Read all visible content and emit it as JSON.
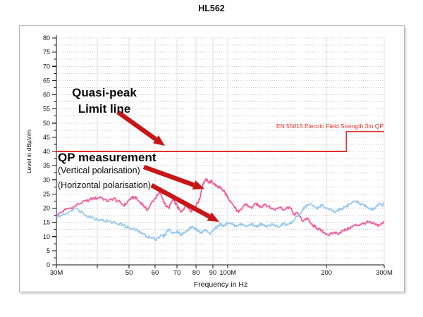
{
  "title": "HL562",
  "chart_data": {
    "type": "line",
    "title": "HL562",
    "xlabel": "Frequency in Hz",
    "ylabel": "Level in dBµV/m",
    "x_scale": "log",
    "x_range_mhz": [
      30,
      300
    ],
    "ylim": [
      0,
      80
    ],
    "y_major_step": 5,
    "y_minor_step": 2.5,
    "grid": true,
    "x_ticks": [
      {
        "f": 30,
        "label": "30M"
      },
      {
        "f": 40,
        "label": ""
      },
      {
        "f": 50,
        "label": "50"
      },
      {
        "f": 60,
        "label": "60"
      },
      {
        "f": 70,
        "label": "70"
      },
      {
        "f": 80,
        "label": "80"
      },
      {
        "f": 90,
        "label": "90"
      },
      {
        "f": 100,
        "label": "100M"
      },
      {
        "f": 200,
        "label": "200"
      },
      {
        "f": 300,
        "label": "300M"
      }
    ],
    "y_ticks": [
      0,
      5,
      10,
      15,
      20,
      25,
      30,
      35,
      40,
      45,
      50,
      55,
      60,
      65,
      70,
      75,
      80
    ],
    "limit_line": {
      "label": "EN 55015 Electric Field Strength 3m QP",
      "color": "#e62e2a",
      "points_mhz_db": [
        [
          30,
          40
        ],
        [
          230,
          40
        ],
        [
          230,
          47
        ],
        [
          300,
          47
        ]
      ]
    },
    "series": [
      {
        "name": "QP measurement (Vertical polarisation)",
        "color": "#ef5390",
        "points": [
          [
            30,
            17.5
          ],
          [
            31,
            18.5
          ],
          [
            32,
            19.5
          ],
          [
            33,
            20
          ],
          [
            34,
            20.5
          ],
          [
            35,
            21.5
          ],
          [
            36,
            22
          ],
          [
            37,
            22.5
          ],
          [
            38,
            23
          ],
          [
            39,
            23.5
          ],
          [
            40,
            23.5
          ],
          [
            41,
            24
          ],
          [
            42,
            23
          ],
          [
            43,
            22.5
          ],
          [
            44,
            23
          ],
          [
            45,
            23.5
          ],
          [
            46,
            22.5
          ],
          [
            47,
            22
          ],
          [
            48,
            21
          ],
          [
            49,
            21.5
          ],
          [
            50,
            23
          ],
          [
            51,
            23.5
          ],
          [
            52,
            24
          ],
          [
            53,
            23
          ],
          [
            54,
            22
          ],
          [
            55,
            21.5
          ],
          [
            56,
            20
          ],
          [
            57,
            19.5
          ],
          [
            58,
            21
          ],
          [
            59,
            22.5
          ],
          [
            60,
            23.5
          ],
          [
            61,
            24.5
          ],
          [
            62,
            25.5
          ],
          [
            63,
            24
          ],
          [
            64,
            22
          ],
          [
            65,
            20.5
          ],
          [
            66,
            20
          ],
          [
            67,
            21.5
          ],
          [
            68,
            23
          ],
          [
            69,
            22
          ],
          [
            70,
            21
          ],
          [
            71,
            19.5
          ],
          [
            72,
            18.5
          ],
          [
            73,
            19.5
          ],
          [
            74,
            20.5
          ],
          [
            75,
            21
          ],
          [
            76,
            20
          ],
          [
            77,
            19
          ],
          [
            78,
            19.5
          ],
          [
            79,
            20.5
          ],
          [
            80,
            21
          ],
          [
            81,
            22
          ],
          [
            82,
            23
          ],
          [
            83,
            26
          ],
          [
            84,
            28.5
          ],
          [
            85,
            29.5
          ],
          [
            86,
            30
          ],
          [
            87,
            29.5
          ],
          [
            88,
            29
          ],
          [
            89,
            29.5
          ],
          [
            90,
            29
          ],
          [
            91,
            28.5
          ],
          [
            92,
            28
          ],
          [
            93,
            27.5
          ],
          [
            94,
            27.5
          ],
          [
            95,
            27
          ],
          [
            96,
            26.5
          ],
          [
            97,
            26
          ],
          [
            98,
            25.5
          ],
          [
            99,
            24.5
          ],
          [
            100,
            24
          ],
          [
            102,
            22.5
          ],
          [
            104,
            21
          ],
          [
            106,
            19.5
          ],
          [
            108,
            18.5
          ],
          [
            110,
            19.5
          ],
          [
            112,
            21
          ],
          [
            114,
            21.5
          ],
          [
            116,
            20.5
          ],
          [
            118,
            20
          ],
          [
            120,
            21
          ],
          [
            122,
            21.5
          ],
          [
            124,
            21
          ],
          [
            126,
            20.5
          ],
          [
            128,
            21
          ],
          [
            130,
            21.5
          ],
          [
            133,
            20.5
          ],
          [
            136,
            20
          ],
          [
            139,
            19.5
          ],
          [
            142,
            20
          ],
          [
            145,
            20.5
          ],
          [
            148,
            19.5
          ],
          [
            151,
            20
          ],
          [
            154,
            20.5
          ],
          [
            157,
            19
          ],
          [
            160,
            17.5
          ],
          [
            163,
            18.5
          ],
          [
            166,
            17
          ],
          [
            169,
            15.5
          ],
          [
            172,
            16
          ],
          [
            175,
            16.5
          ],
          [
            178,
            15
          ],
          [
            181,
            14
          ],
          [
            184,
            13.5
          ],
          [
            187,
            13
          ],
          [
            190,
            12.5
          ],
          [
            193,
            12
          ],
          [
            196,
            11.5
          ],
          [
            200,
            11
          ],
          [
            204,
            10.5
          ],
          [
            208,
            11
          ],
          [
            212,
            11.5
          ],
          [
            216,
            11
          ],
          [
            220,
            11.5
          ],
          [
            225,
            12
          ],
          [
            230,
            12.5
          ],
          [
            235,
            13
          ],
          [
            240,
            13.5
          ],
          [
            245,
            14
          ],
          [
            250,
            14
          ],
          [
            255,
            14.5
          ],
          [
            260,
            14.5
          ],
          [
            265,
            15
          ],
          [
            270,
            15
          ],
          [
            275,
            14.5
          ],
          [
            280,
            14.5
          ],
          [
            285,
            14
          ],
          [
            290,
            14
          ],
          [
            295,
            14.5
          ],
          [
            300,
            15
          ]
        ]
      },
      {
        "name": "QP measurement (Horizontal polarisation)",
        "color": "#90c4ee",
        "points": [
          [
            30,
            17
          ],
          [
            31,
            17.5
          ],
          [
            32,
            18
          ],
          [
            33,
            19
          ],
          [
            34,
            20
          ],
          [
            35,
            19.5
          ],
          [
            36,
            18.5
          ],
          [
            37,
            17.5
          ],
          [
            38,
            17
          ],
          [
            39,
            16.5
          ],
          [
            40,
            16
          ],
          [
            41,
            16
          ],
          [
            42,
            15.5
          ],
          [
            43,
            15.5
          ],
          [
            44,
            15
          ],
          [
            45,
            15
          ],
          [
            46,
            14.5
          ],
          [
            47,
            14.5
          ],
          [
            48,
            14
          ],
          [
            49,
            13.5
          ],
          [
            50,
            13
          ],
          [
            51,
            12.5
          ],
          [
            52,
            12.5
          ],
          [
            53,
            12
          ],
          [
            54,
            11.5
          ],
          [
            55,
            11
          ],
          [
            56,
            10.5
          ],
          [
            57,
            10
          ],
          [
            58,
            9.5
          ],
          [
            59,
            9.5
          ],
          [
            60,
            9
          ],
          [
            61,
            9.5
          ],
          [
            62,
            10
          ],
          [
            63,
            10.5
          ],
          [
            64,
            10
          ],
          [
            65,
            11.5
          ],
          [
            66,
            12.5
          ],
          [
            67,
            12
          ],
          [
            68,
            11
          ],
          [
            69,
            11.5
          ],
          [
            70,
            12
          ],
          [
            71,
            11.5
          ],
          [
            72,
            10.5
          ],
          [
            73,
            11
          ],
          [
            74,
            11.5
          ],
          [
            75,
            12
          ],
          [
            76,
            12.5
          ],
          [
            77,
            13
          ],
          [
            78,
            13.5
          ],
          [
            79,
            13
          ],
          [
            80,
            12.5
          ],
          [
            81,
            12
          ],
          [
            82,
            11.5
          ],
          [
            83,
            11.5
          ],
          [
            84,
            12
          ],
          [
            85,
            12.5
          ],
          [
            86,
            12
          ],
          [
            87,
            11.5
          ],
          [
            88,
            11
          ],
          [
            89,
            11.5
          ],
          [
            90,
            12
          ],
          [
            91,
            12.5
          ],
          [
            92,
            13
          ],
          [
            93,
            13.5
          ],
          [
            94,
            14
          ],
          [
            95,
            14.5
          ],
          [
            96,
            14
          ],
          [
            97,
            13.5
          ],
          [
            98,
            14
          ],
          [
            99,
            14.5
          ],
          [
            100,
            15
          ],
          [
            102,
            14.5
          ],
          [
            104,
            14
          ],
          [
            106,
            13.5
          ],
          [
            108,
            14
          ],
          [
            110,
            14.5
          ],
          [
            112,
            14
          ],
          [
            114,
            13.5
          ],
          [
            116,
            14
          ],
          [
            118,
            14.5
          ],
          [
            120,
            14
          ],
          [
            122,
            13.5
          ],
          [
            124,
            14
          ],
          [
            126,
            14.5
          ],
          [
            128,
            14
          ],
          [
            130,
            13.5
          ],
          [
            133,
            14
          ],
          [
            136,
            14.5
          ],
          [
            139,
            14
          ],
          [
            142,
            13.5
          ],
          [
            145,
            14
          ],
          [
            148,
            14.5
          ],
          [
            151,
            14
          ],
          [
            154,
            14.5
          ],
          [
            157,
            15
          ],
          [
            160,
            16
          ],
          [
            163,
            17
          ],
          [
            166,
            18
          ],
          [
            169,
            19.5
          ],
          [
            172,
            20.5
          ],
          [
            175,
            21
          ],
          [
            178,
            21.5
          ],
          [
            181,
            21
          ],
          [
            184,
            20.5
          ],
          [
            187,
            20
          ],
          [
            190,
            20.5
          ],
          [
            193,
            21
          ],
          [
            196,
            20.5
          ],
          [
            200,
            20
          ],
          [
            204,
            19.5
          ],
          [
            208,
            19
          ],
          [
            212,
            18.5
          ],
          [
            216,
            19
          ],
          [
            220,
            19.5
          ],
          [
            225,
            20
          ],
          [
            230,
            20.5
          ],
          [
            235,
            21.5
          ],
          [
            240,
            22
          ],
          [
            245,
            22.5
          ],
          [
            250,
            22
          ],
          [
            255,
            21.5
          ],
          [
            260,
            21
          ],
          [
            265,
            20.5
          ],
          [
            270,
            20
          ],
          [
            275,
            19.5
          ],
          [
            280,
            20
          ],
          [
            285,
            21
          ],
          [
            290,
            21.5
          ],
          [
            295,
            21
          ],
          [
            300,
            21.5
          ]
        ]
      }
    ]
  },
  "annotations": {
    "quasi_peak_line1": "Quasi-peak",
    "quasi_peak_line2": "Limit line",
    "qp_measurement": "QP measurement",
    "vertical_polarisation": "(Vertical polarisation)",
    "horizontal_polarisation": "(Horizontal polarisation)",
    "arrow_color": "#c81617"
  },
  "colors": {
    "grid_dotted": "#c9c9c9",
    "grid_vertical": "#dedede",
    "axis": "#111111",
    "panel_border": "#b4b4b4"
  }
}
